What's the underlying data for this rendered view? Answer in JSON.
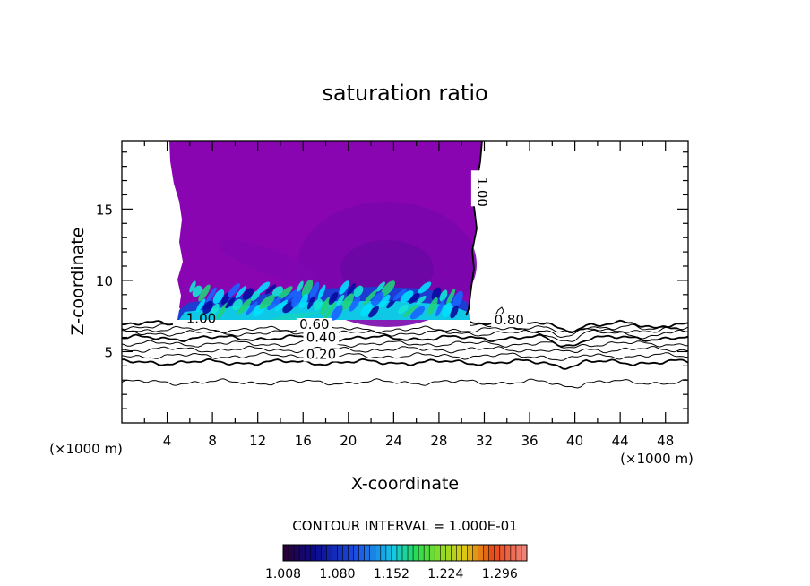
{
  "chart_data": {
    "type": "heatmap",
    "title": "saturation ratio",
    "xlabel": "X-coordinate",
    "ylabel": "Z-coordinate",
    "x_unit": "(×1000 m)",
    "y_unit": "(×1000 m)",
    "xlim": [
      0,
      50
    ],
    "ylim": [
      0,
      19.8
    ],
    "x_ticks": [
      "4",
      "8",
      "12",
      "16",
      "20",
      "24",
      "28",
      "32",
      "36",
      "40",
      "44",
      "48"
    ],
    "y_ticks": [
      "5",
      "10",
      "15"
    ],
    "contour_interval": "CONTOUR INTERVAL = 1.000E-01",
    "contour_levels": [
      0.1,
      0.2,
      0.3,
      0.4,
      0.5,
      0.6,
      0.7,
      0.8,
      0.9,
      1.0
    ],
    "contour_labels": [
      {
        "text": "0.20",
        "x": 17.6,
        "z": 4.5
      },
      {
        "text": "0.40",
        "x": 17.6,
        "z": 5.7
      },
      {
        "text": "0.60",
        "x": 17.0,
        "z": 6.6
      },
      {
        "text": "0.80",
        "x": 34.2,
        "z": 6.9
      },
      {
        "text": "1.00",
        "x": 7.0,
        "z": 7.0
      },
      {
        "text": "1.00",
        "x": 31.4,
        "z": 16.2
      }
    ],
    "cloud_region": {
      "x_range": [
        4.2,
        31.5
      ],
      "z_range": [
        7.2,
        19.8
      ]
    },
    "colorbar": {
      "min": 1.008,
      "max": 1.332,
      "tick_labels": [
        "1.008",
        "1.080",
        "1.152",
        "1.224",
        "1.296"
      ]
    },
    "grid": false
  }
}
